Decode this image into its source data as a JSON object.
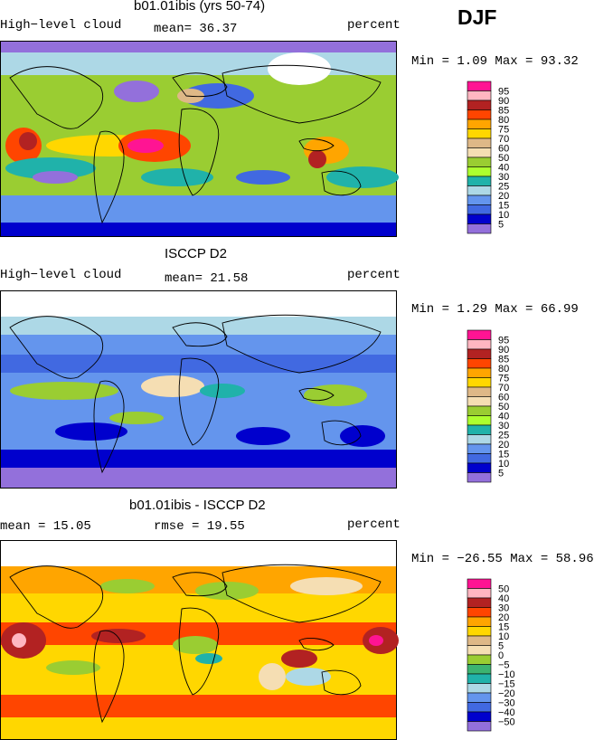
{
  "season": "DJF",
  "panels": [
    {
      "title": "b01.01ibis (yrs 50-74)",
      "left_label": "High−level cloud",
      "center_label": "mean=  36.37",
      "right_label": "percent",
      "minmax": "Min =    1.09 Max =  93.32"
    },
    {
      "title": "ISCCP D2",
      "left_label": "High−level cloud",
      "center_label": "mean=  21.58",
      "right_label": "percent",
      "minmax": "Min =    1.29 Max =  66.99"
    },
    {
      "title": "b01.01ibis - ISCCP D2",
      "left_label": "mean =  15.05",
      "center_label": "rmse =  19.55",
      "right_label": "percent",
      "minmax": "Min = −26.55 Max =  58.96"
    }
  ],
  "chart_data": [
    {
      "type": "heatmap",
      "title": "b01.01ibis (yrs 50-74)",
      "variable": "High−level cloud",
      "units": "percent",
      "mean": 36.37,
      "min": 1.09,
      "max": 93.32,
      "legend": {
        "labels": [
          "95",
          "90",
          "85",
          "80",
          "75",
          "70",
          "60",
          "50",
          "40",
          "30",
          "25",
          "20",
          "15",
          "10",
          "5"
        ],
        "colors": [
          "#ff1493",
          "#ffb6c1",
          "#b22222",
          "#ff4500",
          "#ffa500",
          "#ffd700",
          "#deb887",
          "#f5deb3",
          "#9acd32",
          "#adff2f",
          "#20b2aa",
          "#add8e6",
          "#6495ed",
          "#4169e1",
          "#0000cd",
          "#9370db"
        ]
      }
    },
    {
      "type": "heatmap",
      "title": "ISCCP D2",
      "variable": "High−level cloud",
      "units": "percent",
      "mean": 21.58,
      "min": 1.29,
      "max": 66.99,
      "legend": {
        "labels": [
          "95",
          "90",
          "85",
          "80",
          "75",
          "70",
          "60",
          "50",
          "40",
          "30",
          "25",
          "20",
          "15",
          "10",
          "5"
        ],
        "colors": [
          "#ff1493",
          "#ffb6c1",
          "#b22222",
          "#ff4500",
          "#ffa500",
          "#ffd700",
          "#deb887",
          "#f5deb3",
          "#9acd32",
          "#adff2f",
          "#20b2aa",
          "#add8e6",
          "#6495ed",
          "#4169e1",
          "#0000cd",
          "#9370db"
        ]
      }
    },
    {
      "type": "heatmap",
      "title": "b01.01ibis - ISCCP D2",
      "units": "percent",
      "mean": 15.05,
      "rmse": 19.55,
      "min": -26.55,
      "max": 58.96,
      "legend": {
        "labels": [
          "50",
          "40",
          "30",
          "20",
          "15",
          "10",
          "5",
          "0",
          "−5",
          "−10",
          "−15",
          "−20",
          "−30",
          "−40",
          "−50"
        ],
        "colors": [
          "#ff1493",
          "#ffb6c1",
          "#b22222",
          "#ff4500",
          "#ffa500",
          "#ffd700",
          "#deb887",
          "#f5deb3",
          "#9acd32",
          "#3cb371",
          "#20b2aa",
          "#add8e6",
          "#6495ed",
          "#4169e1",
          "#0000cd",
          "#9370db"
        ]
      }
    }
  ]
}
